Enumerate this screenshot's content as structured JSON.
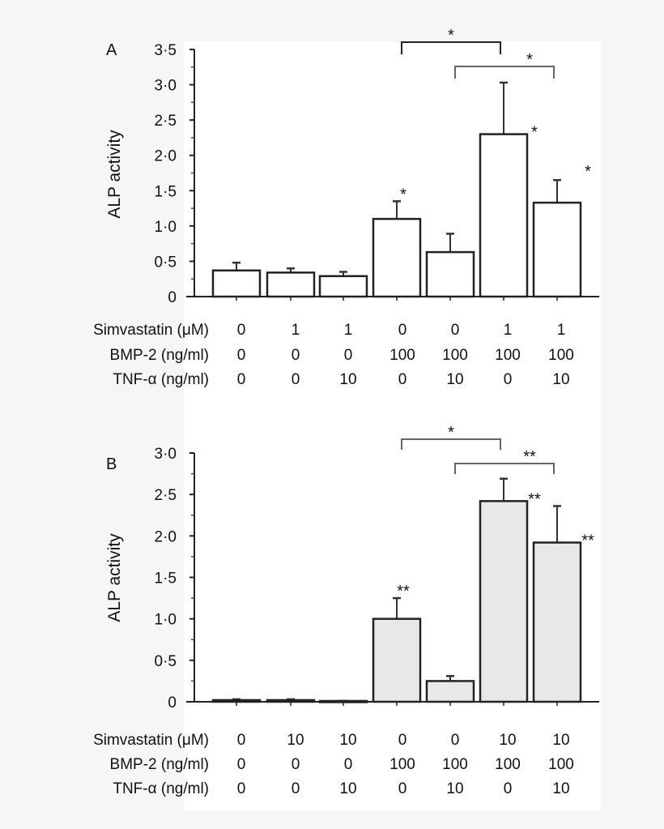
{
  "chart_data": [
    {
      "type": "bar",
      "panel_label": "A",
      "ylabel": "ALP activity",
      "ylim": [
        0,
        3.5
      ],
      "yticks": [
        "0",
        "0·5",
        "1·0",
        "1·5",
        "2·0",
        "2·5",
        "3·0",
        "3·5"
      ],
      "bar_fill": "#ffffff",
      "values": [
        0.37,
        0.34,
        0.29,
        1.1,
        0.63,
        2.3,
        1.33
      ],
      "error_upper": [
        0.48,
        0.4,
        0.35,
        1.35,
        0.89,
        3.03,
        1.65
      ],
      "bar_annotations": [
        "",
        "",
        "",
        "*",
        "",
        "*",
        "*"
      ],
      "comparisons": [
        {
          "from": 4,
          "to": 6,
          "label": "*",
          "color": "#222222"
        },
        {
          "from": 5,
          "to": 7,
          "label": "*",
          "color": "#666666"
        }
      ],
      "conditions": [
        {
          "label": "Simvastatin (μM)",
          "values": [
            "0",
            "1",
            "1",
            "0",
            "0",
            "1",
            "1"
          ]
        },
        {
          "label": "BMP-2 (ng/ml)",
          "values": [
            "0",
            "0",
            "0",
            "100",
            "100",
            "100",
            "100"
          ]
        },
        {
          "label": "TNF-α (ng/ml)",
          "values": [
            "0",
            "0",
            "10",
            "0",
            "10",
            "0",
            "10"
          ]
        }
      ]
    },
    {
      "type": "bar",
      "panel_label": "B",
      "ylabel": "ALP activity",
      "ylim": [
        0,
        3.0
      ],
      "yticks": [
        "0",
        "0·5",
        "1·0",
        "1·5",
        "2·0",
        "2·5",
        "3·0"
      ],
      "bar_fill": "#e8e8e8",
      "values": [
        0.02,
        0.02,
        0.01,
        1.0,
        0.25,
        2.42,
        1.92
      ],
      "error_upper": [
        0.03,
        0.03,
        0.01,
        1.25,
        0.31,
        2.69,
        2.36
      ],
      "bar_annotations": [
        "",
        "",
        "",
        "**",
        "",
        "**",
        "**"
      ],
      "comparisons": [
        {
          "from": 4,
          "to": 6,
          "label": "*",
          "color": "#666666"
        },
        {
          "from": 5,
          "to": 7,
          "label": "**",
          "color": "#666666"
        }
      ],
      "conditions": [
        {
          "label": "Simvastatin (μM)",
          "values": [
            "0",
            "10",
            "10",
            "0",
            "0",
            "10",
            "10"
          ]
        },
        {
          "label": "BMP-2 (ng/ml)",
          "values": [
            "0",
            "0",
            "0",
            "100",
            "100",
            "100",
            "100"
          ]
        },
        {
          "label": "TNF-α (ng/ml)",
          "values": [
            "0",
            "0",
            "10",
            "0",
            "10",
            "0",
            "10"
          ]
        }
      ]
    }
  ]
}
